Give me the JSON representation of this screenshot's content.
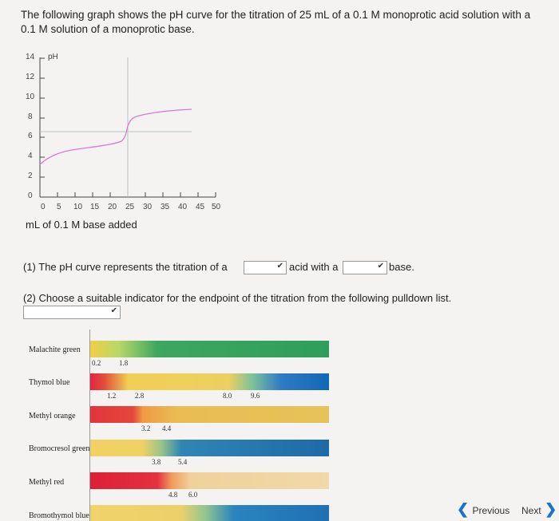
{
  "intro": "The following graph shows the pH curve for the titration of 25 mL of a 0.1 M monoprotic acid solution with a 0.1 M solution of a monoprotic base.",
  "graph": {
    "ylabel": "pH",
    "yticks": [
      "14",
      "12",
      "10",
      "8",
      "6",
      "4",
      "2",
      "0"
    ],
    "xticks": [
      "0",
      "5",
      "10",
      "15",
      "20",
      "25",
      "30",
      "35",
      "40",
      "45",
      "50"
    ],
    "xlabel": "mL of 0.1 M base added"
  },
  "q1": {
    "prefix": "(1) The pH curve represents the titration of a",
    "mid": "acid with a",
    "suffix": "base.",
    "acid_value": "",
    "base_value": ""
  },
  "q2": {
    "text": "(2) Choose a suitable indicator for the endpoint of the titration from the following pulldown list.",
    "value": ""
  },
  "indicators": [
    {
      "name": "Malachite green",
      "ranges": [
        "0.2",
        "1.8"
      ]
    },
    {
      "name": "Thymol blue",
      "ranges": [
        "1.2",
        "2.8",
        "8.0",
        "9.6"
      ]
    },
    {
      "name": "Methyl orange",
      "ranges": [
        "3.2",
        "4.4"
      ]
    },
    {
      "name": "Bromocresol green",
      "ranges": [
        "3.8",
        "5.4"
      ]
    },
    {
      "name": "Methyl red",
      "ranges": [
        "4.8",
        "6.0"
      ]
    },
    {
      "name": "Bromothymol blue",
      "ranges": []
    }
  ],
  "nav": {
    "previous": "Previous",
    "next": "Next"
  },
  "colors": {
    "curve": "#d87ad0",
    "guideline": "#b9c5c8",
    "select_border": "#9a9a9a",
    "nav_arrow": "#1a73c9"
  }
}
